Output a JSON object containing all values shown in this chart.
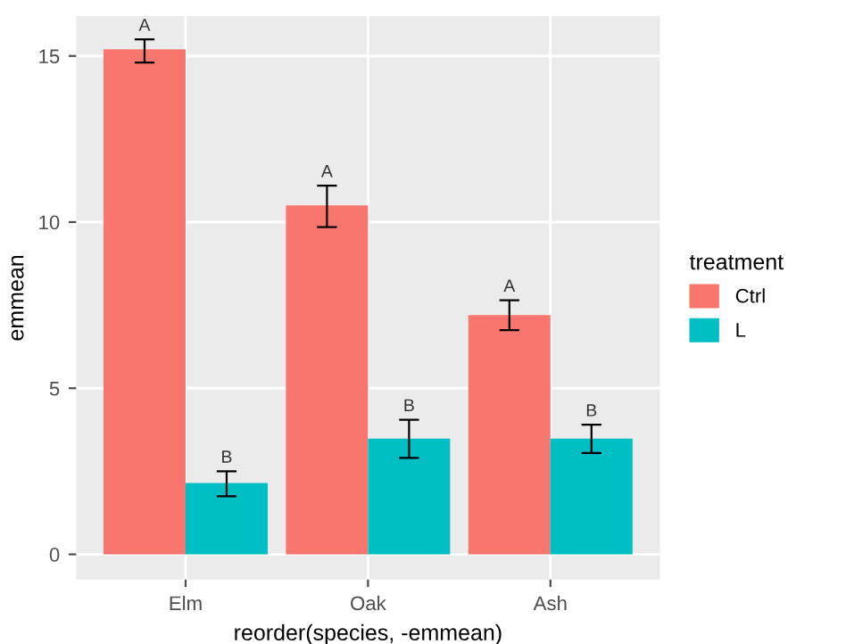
{
  "chart_data": {
    "type": "bar",
    "xlabel": "reorder(species, -emmean)",
    "ylabel": "emmean",
    "legend_title": "treatment",
    "categories": [
      "Elm",
      "Oak",
      "Ash"
    ],
    "series": [
      {
        "name": "Ctrl",
        "color": "#f8766d",
        "values": [
          15.2,
          10.5,
          7.2
        ],
        "errors": [
          [
            14.8,
            15.5
          ],
          [
            9.85,
            11.1
          ],
          [
            6.75,
            7.65
          ]
        ],
        "value_labels": [
          "A",
          "A",
          "A"
        ]
      },
      {
        "name": "L",
        "color": "#00bfc4",
        "values": [
          2.15,
          3.48,
          3.48
        ],
        "errors": [
          [
            1.75,
            2.5
          ],
          [
            2.9,
            4.05
          ],
          [
            3.05,
            3.9
          ]
        ],
        "value_labels": [
          "B",
          "B",
          "B"
        ]
      }
    ],
    "ylim": [
      -0.76,
      16.2
    ],
    "yticks": [
      0,
      5,
      10,
      15
    ],
    "grid": true,
    "legend": "right"
  }
}
